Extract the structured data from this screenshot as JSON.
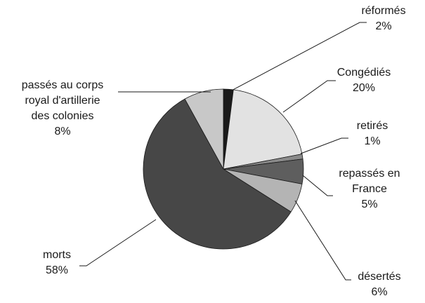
{
  "chart_data": {
    "type": "pie",
    "title": "",
    "legend": "none",
    "slices": [
      {
        "label_lines": [
          "réformés"
        ],
        "percent_label": "2%",
        "value": 2,
        "color": "#1a1a1a"
      },
      {
        "label_lines": [
          "Congédiés"
        ],
        "percent_label": "20%",
        "value": 20,
        "color": "#e2e2e2"
      },
      {
        "label_lines": [
          "retirés"
        ],
        "percent_label": "1%",
        "value": 1,
        "color": "#8a8a8a"
      },
      {
        "label_lines": [
          "repassés en",
          "France"
        ],
        "percent_label": "5%",
        "value": 5,
        "color": "#5e5e5e"
      },
      {
        "label_lines": [
          "désertés"
        ],
        "percent_label": "6%",
        "value": 6,
        "color": "#b4b4b4"
      },
      {
        "label_lines": [
          "morts"
        ],
        "percent_label": "58%",
        "value": 58,
        "color": "#474747"
      },
      {
        "label_lines": [
          "passés au corps",
          "royal d'artillerie",
          "des colonies"
        ],
        "percent_label": "8%",
        "value": 8,
        "color": "#c8c8c8"
      }
    ]
  }
}
